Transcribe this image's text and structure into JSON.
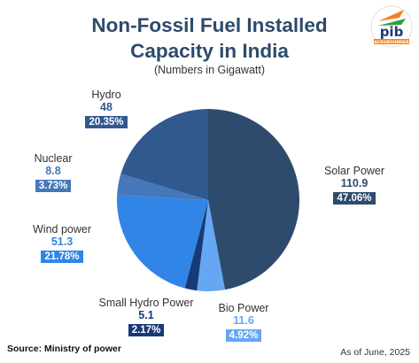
{
  "header": {
    "title_line1": "Non-Fossil Fuel Installed",
    "title_line2": "Capacity in India",
    "subtitle": "(Numbers in Gigawatt)"
  },
  "logo": {
    "text": "BACKGROUNDERS"
  },
  "footer": {
    "source": "Source: Ministry of power",
    "date": "As of June, 2025"
  },
  "chart_data": {
    "type": "pie",
    "title": "Non-Fossil Fuel Installed Capacity in India",
    "subtitle": "(Numbers in Gigawatt)",
    "slices": [
      {
        "name": "Solar Power",
        "value": 110.9,
        "percent": "47.06%",
        "color": "#2e4b6e",
        "value_color": "#2e4b6e"
      },
      {
        "name": "Bio Power",
        "value": 11.6,
        "percent": "4.92%",
        "color": "#65a7f2",
        "value_color": "#65a7f2"
      },
      {
        "name": "Small Hydro Power",
        "value": 5.1,
        "percent": "2.17%",
        "color": "#173a78",
        "value_color": "#173a78"
      },
      {
        "name": "Wind power",
        "value": 51.3,
        "percent": "21.78%",
        "color": "#3185e6",
        "value_color": "#3185e6"
      },
      {
        "name": "Nuclear",
        "value": 8.8,
        "percent": "3.73%",
        "color": "#4578ba",
        "value_color": "#4578ba"
      },
      {
        "name": "Hydro",
        "value": 48,
        "percent": "20.35%",
        "color": "#32598f",
        "value_color": "#32598f"
      }
    ]
  }
}
